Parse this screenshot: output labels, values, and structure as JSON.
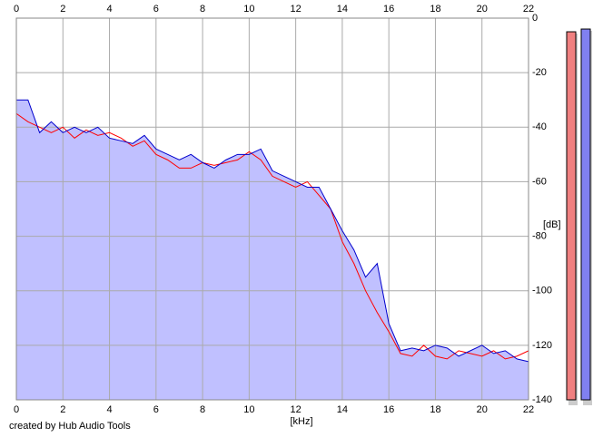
{
  "chart_data": {
    "type": "line",
    "x": [
      0,
      0.5,
      1,
      1.5,
      2,
      2.5,
      3,
      3.5,
      4,
      4.5,
      5,
      5.5,
      6,
      6.5,
      7,
      7.5,
      8,
      8.5,
      9,
      9.5,
      10,
      10.5,
      11,
      11.5,
      12,
      12.5,
      13,
      13.5,
      14,
      14.5,
      15,
      15.5,
      16,
      16.5,
      17,
      17.5,
      18,
      18.5,
      19,
      19.5,
      20,
      20.5,
      21,
      21.5,
      22
    ],
    "series": [
      {
        "color": "#ff0000",
        "values": [
          -35,
          -38,
          -40,
          -42,
          -40,
          -44,
          -41,
          -43,
          -42,
          -44,
          -47,
          -45,
          -50,
          -52,
          -55,
          -55,
          -53,
          -54,
          -53,
          -52,
          -49,
          -52,
          -58,
          -60,
          -62,
          -60,
          -65,
          -70,
          -82,
          -90,
          -100,
          -108,
          -115,
          -123,
          -124,
          -120,
          -124,
          -125,
          -122,
          -123,
          -124,
          -122,
          -125,
          -124,
          -122
        ]
      },
      {
        "color": "#0000cc",
        "values": [
          -30,
          -30,
          -42,
          -38,
          -42,
          -40,
          -42,
          -40,
          -44,
          -45,
          -46,
          -43,
          -48,
          -50,
          -52,
          -50,
          -53,
          -55,
          -52,
          -50,
          -50,
          -48,
          -56,
          -58,
          -60,
          -62,
          -62,
          -70,
          -78,
          -85,
          -95,
          -90,
          -112,
          -122,
          -121,
          -122,
          -120,
          -121,
          -124,
          -122,
          -120,
          -123,
          -122,
          -125,
          -126
        ]
      }
    ],
    "area_color": "#c0c0ff",
    "xlim": [
      0,
      22
    ],
    "xticks": [
      0,
      2,
      4,
      6,
      8,
      10,
      12,
      14,
      16,
      18,
      20,
      22
    ],
    "ylim": [
      -140,
      0
    ],
    "yticks": [
      0,
      -20,
      -40,
      -60,
      -80,
      -100,
      -120,
      -140
    ],
    "xlabel": "[kHz]",
    "ylabel": "[dB]",
    "grid": true,
    "meters": [
      {
        "color": "#f08080",
        "value": -5
      },
      {
        "color": "#8080f0",
        "value": -4
      }
    ],
    "credit": "created by Hub Audio Tools"
  }
}
